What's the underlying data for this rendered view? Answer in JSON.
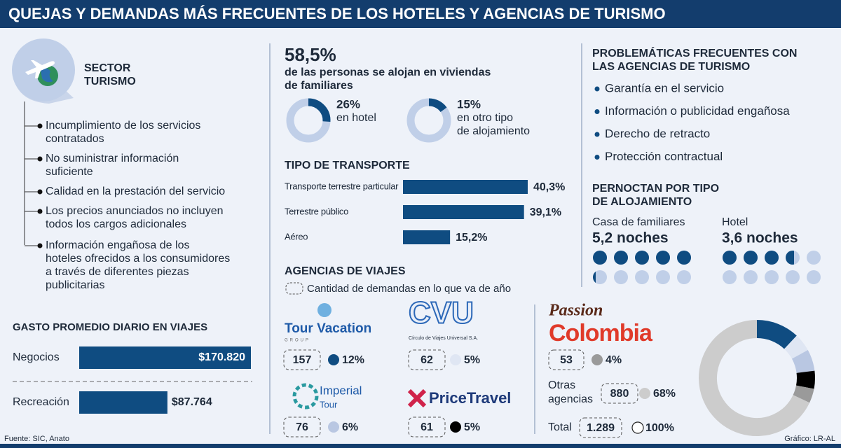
{
  "title": "QUEJAS Y DEMANDAS MÁS FRECUENTES DE LOS HOTELES Y AGENCIAS DE TURISMO",
  "sector": {
    "title": [
      "SECTOR",
      "TURISMO"
    ],
    "items": [
      [
        "Incumplimiento de los servicios",
        "contratados"
      ],
      [
        "No suministrar información",
        "suficiente"
      ],
      [
        "Calidad en la prestación del servicio"
      ],
      [
        "Los precios anunciados no incluyen",
        "todos los cargos adicionales"
      ],
      [
        "Información engañosa de los",
        "hoteles ofrecidos a los consumidores",
        "a través de diferentes piezas",
        "publicitarias"
      ]
    ]
  },
  "gasto": {
    "title": "GASTO PROMEDIO DIARIO EN VIAJES",
    "categories": [
      "Negocios",
      "Recreación"
    ],
    "values": [
      170820,
      87764
    ],
    "value_labels": [
      "$170.820",
      "$87.764"
    ],
    "color": "#0f4c81"
  },
  "alojamiento": {
    "headline": "58,5%",
    "text": [
      "de las personas se alojan en viviendas",
      "de familiares"
    ],
    "donuts": [
      {
        "value": 26,
        "label": "26%",
        "text": [
          "en hotel"
        ]
      },
      {
        "value": 15,
        "label": "15%",
        "text": [
          "en otro tipo",
          "de alojamiento"
        ]
      }
    ]
  },
  "transporte": {
    "title": "TIPO DE TRANSPORTE",
    "categories": [
      "Transporte terrestre particular",
      "Terrestre público",
      "Aéreo"
    ],
    "values": [
      40.3,
      39.1,
      15.2
    ],
    "value_labels": [
      "40,3%",
      "39,1%",
      "15,2%"
    ],
    "color": "#0f4c81"
  },
  "agencias": {
    "title": "AGENCIAS DE VIAJES",
    "legend": "Cantidad de demandas en lo que va de año",
    "items": [
      {
        "logo": [
          "Tour Vacation",
          "GROUP"
        ],
        "count": 157,
        "share": 12,
        "share_label": "12%",
        "color": "#0f4c81"
      },
      {
        "logo": [
          "CVU",
          "Círculo de Viajes Universal S.A."
        ],
        "count": 62,
        "share": 5,
        "share_label": "5%",
        "color": "#dfe6f3"
      },
      {
        "logo": [
          "Imperial",
          "Tour"
        ],
        "count": 76,
        "share": 6,
        "share_label": "6%",
        "color": "#b9c7e2"
      },
      {
        "logo": [
          "PriceTravel"
        ],
        "count": 61,
        "share": 5,
        "share_label": "5%",
        "color": "#000000"
      },
      {
        "logo": [
          "Passion",
          "Colombia"
        ],
        "count": 53,
        "share": 4,
        "share_label": "4%",
        "color": "#9a9a9a"
      },
      {
        "logo": [
          "Otras",
          "agencias"
        ],
        "count": 880,
        "share": 68,
        "share_label": "68%",
        "color": "#cccccc"
      }
    ],
    "total": {
      "name": "Total",
      "count": 1289,
      "count_label": "1.289",
      "share": 100,
      "share_label": "100%"
    }
  },
  "problematicas": {
    "title": [
      "PROBLEMÁTICAS FRECUENTES CON",
      "LAS AGENCIAS DE TURISMO"
    ],
    "items": [
      "Garantía en el servicio",
      "Información o publicidad engañosa",
      "Derecho de retracto",
      "Protección contractual"
    ]
  },
  "pernoctan": {
    "title": [
      "PERNOCTAN POR TIPO",
      "DE ALOJAMIENTO"
    ],
    "groups": [
      {
        "name": "Casa de familiares",
        "value": 5.2,
        "label": "5,2 noches"
      },
      {
        "name": "Hotel",
        "value": 3.6,
        "label": "3,6 noches"
      }
    ]
  },
  "footer": {
    "source": "Fuente: SIC, Anato",
    "credit": "Gráfico: LR-AL"
  }
}
